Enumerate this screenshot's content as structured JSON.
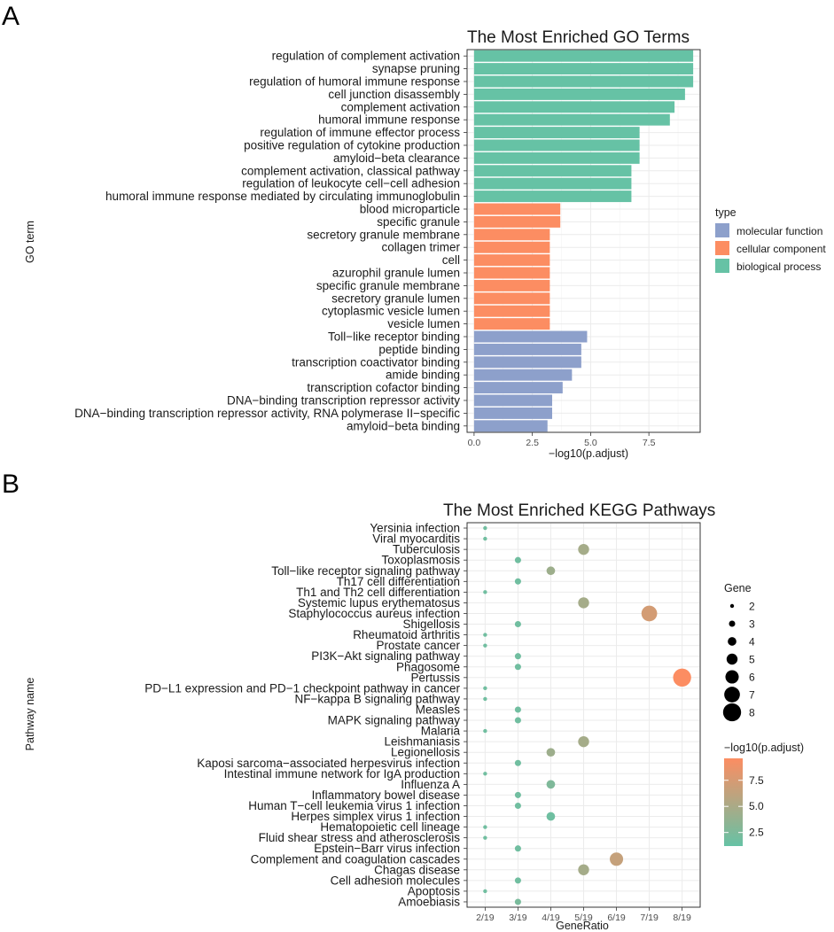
{
  "panel_labels": [
    "A",
    "B"
  ],
  "legend_a": {
    "title": "type",
    "items": [
      {
        "label": "molecular function",
        "color": "#8da0cb"
      },
      {
        "label": "cellular component",
        "color": "#fc8d62"
      },
      {
        "label": "biological process",
        "color": "#66c2a5"
      }
    ]
  },
  "legend_b": {
    "size_title": "Gene",
    "size_values": [
      2,
      3,
      4,
      5,
      6,
      7,
      8
    ],
    "color_title": "−log10(p.adjust)",
    "color_ticks": [
      2.5,
      5.0,
      7.5
    ],
    "color_tick_labels": [
      "2.5",
      "5.0",
      "7.5"
    ],
    "color_low": "#66c2a5",
    "color_high": "#fc8d62"
  },
  "chart_data": [
    {
      "type": "bar",
      "orientation": "horizontal",
      "title": "The Most Enriched GO Terms",
      "xlabel": "−log10(p.adjust)",
      "ylabel": "GO term",
      "xlim": [
        -0.3,
        9.7
      ],
      "xticks": [
        0,
        2.5,
        5,
        7.5
      ],
      "xtick_labels": [
        "0.0",
        "2.5",
        "5.0",
        "7.5"
      ],
      "categories": [
        "regulation of complement activation",
        "synapse pruning",
        "regulation of humoral immune response",
        "cell junction disassembly",
        "complement activation",
        "humoral immune response",
        "regulation of immune effector process",
        "positive regulation of cytokine production",
        "amyloid−beta clearance",
        "complement activation, classical pathway",
        "regulation of leukocyte cell−cell adhesion",
        "humoral immune response mediated by circulating immunoglobulin",
        "blood microparticle",
        "specific granule",
        "secretory granule membrane",
        "collagen trimer",
        "cell",
        "azurophil granule lumen",
        "specific granule membrane",
        "secretory granule lumen",
        "cytoplasmic vesicle lumen",
        "vesicle lumen",
        "Toll−like receptor binding",
        "peptide binding",
        "transcription coactivator binding",
        "amide binding",
        "transcription cofactor binding",
        "DNA−binding transcription repressor activity",
        "DNA−binding transcription repressor activity, RNA polymerase II−specific",
        "amyloid−beta binding"
      ],
      "values": [
        9.4,
        9.4,
        9.4,
        9.05,
        8.6,
        8.4,
        7.1,
        7.1,
        7.1,
        6.75,
        6.75,
        6.75,
        3.7,
        3.7,
        3.25,
        3.25,
        3.25,
        3.25,
        3.25,
        3.25,
        3.25,
        3.25,
        4.85,
        4.6,
        4.6,
        4.2,
        3.8,
        3.35,
        3.35,
        3.15
      ],
      "types": [
        "biological process",
        "biological process",
        "biological process",
        "biological process",
        "biological process",
        "biological process",
        "biological process",
        "biological process",
        "biological process",
        "biological process",
        "biological process",
        "biological process",
        "cellular component",
        "cellular component",
        "cellular component",
        "cellular component",
        "cellular component",
        "cellular component",
        "cellular component",
        "cellular component",
        "cellular component",
        "cellular component",
        "molecular function",
        "molecular function",
        "molecular function",
        "molecular function",
        "molecular function",
        "molecular function",
        "molecular function",
        "molecular function"
      ]
    },
    {
      "type": "scatter",
      "title": "The Most Enriched KEGG Pathways",
      "xlabel": "GeneRatio",
      "ylabel": "Pathway name",
      "x_categories": [
        "2/19",
        "3/19",
        "4/19",
        "5/19",
        "6/19",
        "7/19",
        "8/19"
      ],
      "categories": [
        "Yersinia infection",
        "Viral myocarditis",
        "Tuberculosis",
        "Toxoplasmosis",
        "Toll−like receptor signaling pathway",
        "Th17 cell differentiation",
        "Th1 and Th2 cell differentiation",
        "Systemic lupus erythematosus",
        "Staphylococcus aureus infection",
        "Shigellosis",
        "Rheumatoid arthritis",
        "Prostate cancer",
        "PI3K−Akt signaling pathway",
        "Phagosome",
        "Pertussis",
        "PD−L1 expression and PD−1 checkpoint pathway in cancer",
        "NF−kappa B signaling pathway",
        "Measles",
        "MAPK signaling pathway",
        "Malaria",
        "Leishmaniasis",
        "Legionellosis",
        "Kaposi sarcoma−associated herpesvirus infection",
        "Intestinal immune network for IgA production",
        "Influenza A",
        "Inflammatory bowel disease",
        "Human T−cell leukemia virus 1 infection",
        "Herpes simplex virus 1 infection",
        "Hematopoietic cell lineage",
        "Fluid shear stress and atherosclerosis",
        "Epstein−Barr virus infection",
        "Complement and coagulation cascades",
        "Chagas disease",
        "Cell adhesion molecules",
        "Apoptosis",
        "Amoebiasis"
      ],
      "gene_counts": [
        2,
        2,
        5,
        3,
        4,
        3,
        2,
        5,
        7,
        3,
        2,
        2,
        3,
        3,
        8,
        2,
        2,
        3,
        3,
        2,
        5,
        4,
        3,
        2,
        4,
        3,
        3,
        4,
        2,
        2,
        3,
        6,
        5,
        3,
        2,
        3
      ],
      "gene_ratio_labels": [
        "2/19",
        "2/19",
        "5/19",
        "3/19",
        "4/19",
        "3/19",
        "2/19",
        "5/19",
        "7/19",
        "3/19",
        "2/19",
        "2/19",
        "3/19",
        "3/19",
        "8/19",
        "2/19",
        "2/19",
        "3/19",
        "3/19",
        "2/19",
        "5/19",
        "4/19",
        "3/19",
        "2/19",
        "4/19",
        "3/19",
        "3/19",
        "4/19",
        "2/19",
        "2/19",
        "3/19",
        "6/19",
        "5/19",
        "3/19",
        "2/19",
        "3/19"
      ],
      "neg_log10_padj": [
        1.8,
        1.8,
        4.7,
        1.8,
        4.3,
        1.8,
        1.8,
        4.7,
        7.3,
        1.8,
        1.8,
        1.8,
        1.8,
        1.8,
        9.6,
        1.8,
        1.8,
        1.8,
        1.8,
        1.8,
        4.7,
        4.3,
        1.8,
        1.8,
        2.6,
        1.8,
        1.8,
        1.7,
        1.8,
        1.8,
        1.8,
        6.5,
        4.7,
        1.8,
        1.8,
        2.3
      ],
      "color_range": [
        1.2,
        9.6
      ]
    }
  ]
}
